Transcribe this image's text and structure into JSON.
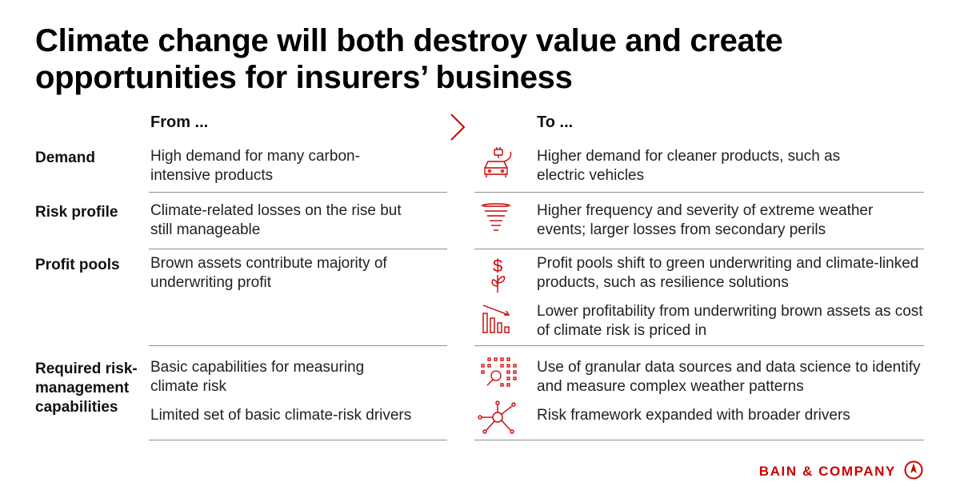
{
  "title": "Climate change will both destroy value and create opportunities for insurers’ business",
  "headers": {
    "from": "From ...",
    "to": "To ..."
  },
  "rows": [
    {
      "label": "Demand",
      "from": [
        "High demand for many carbon-intensive products"
      ],
      "to": [
        {
          "icon": "electric-car-icon",
          "text": "Higher demand for cleaner products, such as electric vehicles"
        }
      ]
    },
    {
      "label": "Risk profile",
      "from": [
        "Climate-related losses on the rise but still manageable"
      ],
      "to": [
        {
          "icon": "tornado-icon",
          "text": "Higher frequency and severity of extreme weather events; larger losses from secondary perils"
        }
      ]
    },
    {
      "label": "Profit pools",
      "from": [
        "Brown assets contribute majority of underwriting profit"
      ],
      "to": [
        {
          "icon": "dollar-sprout-icon",
          "text": "Profit pools shift to green underwriting and climate-linked products, such as resilience solutions"
        },
        {
          "icon": "declining-bars-icon",
          "text": "Lower profitability from underwriting brown assets as cost of climate risk is priced in"
        }
      ]
    },
    {
      "label": "Required risk-management capabilities",
      "from": [
        "Basic capabilities for measuring climate risk",
        "Limited set of basic climate-risk drivers"
      ],
      "to": [
        {
          "icon": "data-magnifier-icon",
          "text": "Use of granular data sources and data science to identify and measure complex weather patterns"
        },
        {
          "icon": "network-hub-icon",
          "text": "Risk framework expanded with broader drivers"
        }
      ]
    }
  ],
  "brand": {
    "name": "BAIN & COMPANY",
    "accent": "#cc0000"
  }
}
